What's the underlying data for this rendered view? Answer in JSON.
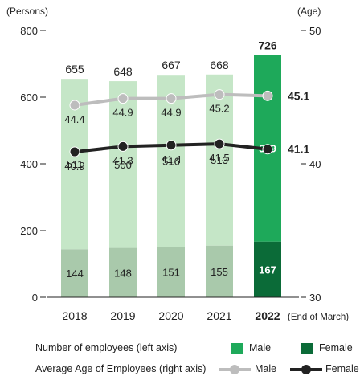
{
  "chart_data": {
    "type": "bar",
    "units": {
      "left": "(Persons)",
      "right": "(Age)"
    },
    "x_suffix": "(End of March)",
    "categories": [
      "2018",
      "2019",
      "2020",
      "2021",
      "2022"
    ],
    "highlight_category": "2022",
    "left_axis": {
      "ylim": [
        0,
        800
      ],
      "ticks": [
        0,
        200,
        400,
        600,
        800
      ]
    },
    "right_axis": {
      "ylim": [
        30,
        50
      ],
      "ticks": [
        30,
        40,
        50
      ]
    },
    "series": [
      {
        "name": "Male",
        "kind": "bar",
        "axis": "left",
        "values": [
          511,
          500,
          516,
          513,
          559
        ],
        "color": "#c5e6c7",
        "highlight_color": "#1ea95a"
      },
      {
        "name": "Female",
        "kind": "bar",
        "axis": "left",
        "values": [
          144,
          148,
          151,
          155,
          167
        ],
        "color": "#a9c9ab",
        "highlight_color": "#0b6b38"
      },
      {
        "name": "Male",
        "kind": "line",
        "axis": "right",
        "values": [
          44.4,
          44.9,
          44.9,
          45.2,
          45.1
        ],
        "color": "#bdbdbd"
      },
      {
        "name": "Female",
        "kind": "line",
        "axis": "right",
        "values": [
          40.9,
          41.3,
          41.4,
          41.5,
          41.1
        ],
        "color": "#222222"
      }
    ],
    "totals": [
      655,
      648,
      667,
      668,
      726
    ]
  },
  "legend": {
    "bars_label": "Number of employees (left axis)",
    "lines_label": "Average Age of Employees (right axis)",
    "male": "Male",
    "female": "Female"
  }
}
